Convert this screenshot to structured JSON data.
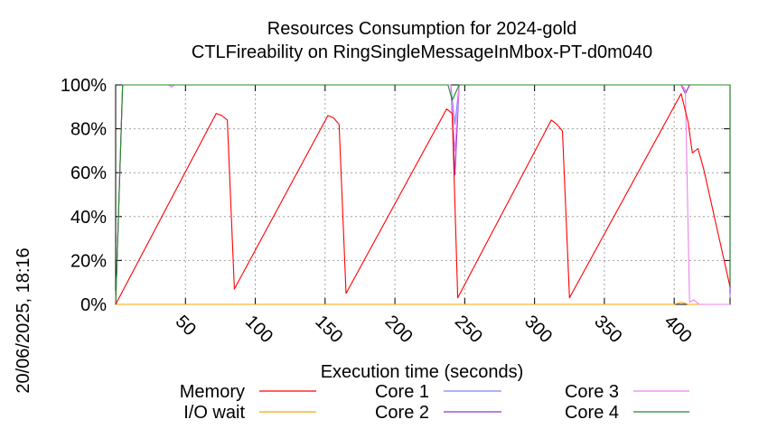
{
  "chart_data": {
    "type": "line",
    "title": [
      "Resources Consumption for 2024-gold",
      "CTLFireability on RingSingleMessageInMbox-PT-d0m040"
    ],
    "xlabel": "Execution time (seconds)",
    "ylabel": "",
    "side_label": "20/06/2025, 18:16",
    "xlim": [
      0,
      440
    ],
    "ylim": [
      0,
      100
    ],
    "x_ticks": [
      50,
      100,
      150,
      200,
      250,
      300,
      350,
      400
    ],
    "y_ticks": [
      0,
      20,
      40,
      60,
      80,
      100
    ],
    "y_tick_labels": [
      "0%",
      "20%",
      "40%",
      "60%",
      "80%",
      "100%"
    ],
    "grid": true,
    "legend_position": "bottom",
    "series": [
      {
        "name": "Memory",
        "color": "#ff0000",
        "points": [
          [
            0,
            0
          ],
          [
            72,
            87
          ],
          [
            76,
            86
          ],
          [
            80,
            84
          ],
          [
            85,
            7
          ],
          [
            152,
            86
          ],
          [
            156,
            85
          ],
          [
            160,
            82
          ],
          [
            165,
            5
          ],
          [
            237,
            89
          ],
          [
            241,
            87
          ],
          [
            245,
            3
          ],
          [
            312,
            84
          ],
          [
            316,
            82
          ],
          [
            320,
            79
          ],
          [
            325,
            3
          ],
          [
            405,
            96
          ],
          [
            410,
            83
          ],
          [
            413,
            69
          ],
          [
            417,
            71
          ],
          [
            421,
            62
          ],
          [
            440,
            8
          ]
        ]
      },
      {
        "name": "I/O wait",
        "color": "#ffa500",
        "points": [
          [
            0,
            0
          ],
          [
            400,
            0
          ],
          [
            405,
            1
          ],
          [
            410,
            0
          ],
          [
            440,
            0
          ]
        ]
      },
      {
        "name": "Core 1",
        "color": "#8080ff",
        "points": [
          [
            0,
            0
          ],
          [
            5,
            100
          ],
          [
            38,
            100
          ],
          [
            40,
            99
          ],
          [
            42,
            100
          ],
          [
            240,
            100
          ],
          [
            243,
            82
          ],
          [
            246,
            100
          ],
          [
            405,
            100
          ],
          [
            408,
            96
          ],
          [
            411,
            100
          ],
          [
            440,
            100
          ],
          [
            442,
            3
          ]
        ]
      },
      {
        "name": "Core 2",
        "color": "#9933cc",
        "points": [
          [
            0,
            0
          ],
          [
            5,
            100
          ],
          [
            240,
            100
          ],
          [
            243,
            59
          ],
          [
            246,
            100
          ],
          [
            405,
            100
          ],
          [
            408,
            96
          ],
          [
            411,
            100
          ],
          [
            440,
            100
          ],
          [
            442,
            5
          ]
        ]
      },
      {
        "name": "Core 3",
        "color": "#ee82ee",
        "points": [
          [
            0,
            0
          ],
          [
            5,
            100
          ],
          [
            38,
            100
          ],
          [
            40,
            99
          ],
          [
            42,
            100
          ],
          [
            240,
            100
          ],
          [
            243,
            70
          ],
          [
            246,
            100
          ],
          [
            405,
            100
          ],
          [
            408,
            98
          ],
          [
            411,
            1
          ],
          [
            414,
            2
          ],
          [
            418,
            0
          ],
          [
            440,
            0
          ]
        ]
      },
      {
        "name": "Core 4",
        "color": "#228b22",
        "points": [
          [
            0,
            0
          ],
          [
            5,
            100
          ],
          [
            238,
            100
          ],
          [
            241,
            93
          ],
          [
            246,
            100
          ],
          [
            440,
            100
          ],
          [
            442,
            8
          ]
        ]
      }
    ]
  }
}
